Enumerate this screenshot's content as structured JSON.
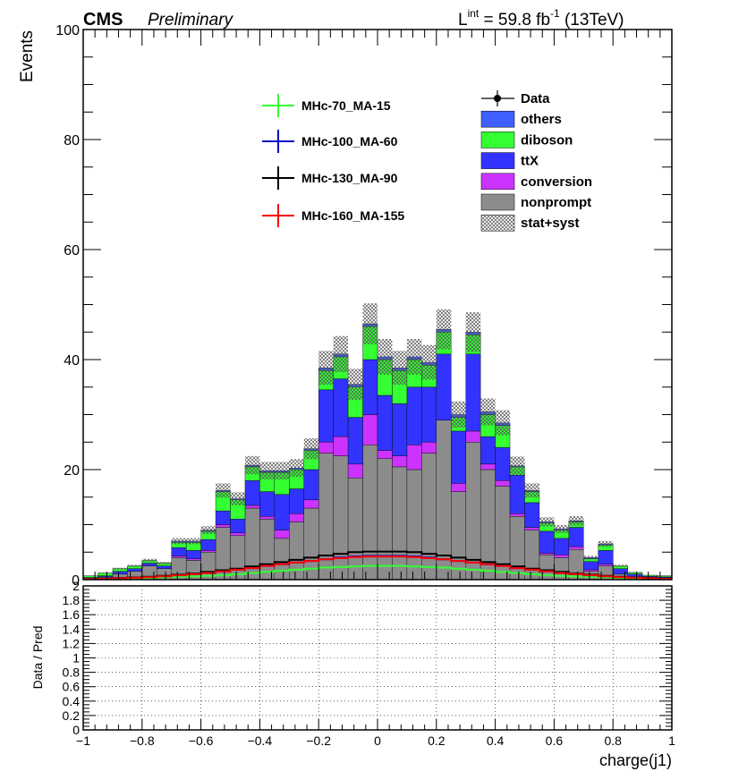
{
  "header": {
    "experiment": "CMS",
    "status": "Preliminary",
    "lumi_prefix": "L",
    "lumi_sup": "int",
    "lumi_value": " = 59.8 fb",
    "lumi_unit_sup": "-1",
    "lumi_energy": " (13TeV)"
  },
  "colors": {
    "others": "#3f5fff",
    "diboson": "#33ff33",
    "ttX": "#3333ff",
    "conversion": "#cc33ff",
    "nonprompt": "#8c8c8c",
    "sig1": "#33ff33",
    "sig2": "#0000cc",
    "sig3": "#000000",
    "sig4": "#ff0000"
  },
  "legend": {
    "signals": [
      "MHc-70_MA-15",
      "MHc-100_MA-60",
      "MHc-130_MA-90",
      "MHc-160_MA-155"
    ],
    "backgrounds": [
      "Data",
      "others",
      "diboson",
      "ttX",
      "conversion",
      "nonprompt",
      "stat+syst"
    ]
  },
  "chart_data": [
    {
      "type": "bar",
      "stacked": true,
      "ylabel": "Events",
      "xlim": [
        -1,
        1
      ],
      "ylim": [
        0,
        100
      ],
      "y_ticks": [
        "0",
        "20",
        "40",
        "60",
        "80",
        "100"
      ],
      "bin_edges": [
        -1.0,
        -0.95,
        -0.9,
        -0.85,
        -0.8,
        -0.75,
        -0.7,
        -0.65,
        -0.6,
        -0.55,
        -0.5,
        -0.45,
        -0.4,
        -0.35,
        -0.3,
        -0.25,
        -0.2,
        -0.15,
        -0.1,
        -0.05,
        0.0,
        0.05,
        0.1,
        0.15,
        0.2,
        0.25,
        0.3,
        0.35,
        0.4,
        0.45,
        0.5,
        0.55,
        0.6,
        0.65,
        0.7,
        0.75,
        0.8,
        0.85,
        0.9,
        0.95,
        1.0
      ],
      "series": [
        {
          "name": "nonprompt",
          "values": [
            0.2,
            0.5,
            1.0,
            1.5,
            2.5,
            2.0,
            4.0,
            3.5,
            5.0,
            9.5,
            8.0,
            13.0,
            11.0,
            7.5,
            10.5,
            13.0,
            23.0,
            22.5,
            18.5,
            24.5,
            22.0,
            20.5,
            20.0,
            23.0,
            29.0,
            16.0,
            25.0,
            20.0,
            17.0,
            11.5,
            9.0,
            4.5,
            4.0,
            5.5,
            1.5,
            2.5,
            1.0,
            0.5,
            0.3,
            0.2
          ]
        },
        {
          "name": "conversion",
          "values": [
            0.0,
            0.0,
            0.0,
            0.0,
            0.0,
            0.0,
            0.3,
            0.3,
            0.3,
            0.5,
            0.5,
            0.5,
            0.5,
            1.5,
            1.5,
            1.5,
            2.0,
            3.5,
            2.5,
            5.5,
            1.5,
            2.0,
            4.5,
            2.0,
            0.0,
            1.5,
            2.0,
            1.0,
            1.0,
            0.5,
            0.5,
            0.3,
            0.5,
            0.5,
            0.3,
            0.3,
            0.0,
            0.0,
            0.0,
            0.0
          ]
        },
        {
          "name": "ttX",
          "values": [
            0.2,
            0.2,
            0.5,
            0.5,
            0.5,
            0.5,
            1.5,
            1.5,
            2.0,
            2.5,
            2.5,
            4.5,
            4.5,
            6.5,
            4.5,
            5.5,
            9.5,
            10.5,
            8.5,
            10.0,
            10.0,
            9.5,
            10.5,
            10.0,
            12.0,
            9.5,
            14.0,
            5.0,
            6.0,
            7.0,
            4.5,
            4.0,
            3.0,
            3.5,
            1.5,
            2.5,
            1.0,
            0.5,
            0.3,
            0.3
          ]
        },
        {
          "name": "diboson",
          "values": [
            0.3,
            0.5,
            0.5,
            0.5,
            0.5,
            0.5,
            1.0,
            1.5,
            1.5,
            3.5,
            3.5,
            2.5,
            3.5,
            4.0,
            3.5,
            3.5,
            3.5,
            4.0,
            5.5,
            6.0,
            6.5,
            6.0,
            5.0,
            4.0,
            4.0,
            2.5,
            3.5,
            4.0,
            4.0,
            1.5,
            2.0,
            1.5,
            1.5,
            1.0,
            0.5,
            1.0,
            0.5,
            0.3,
            0.2,
            0.2
          ]
        },
        {
          "name": "others",
          "values": [
            0.0,
            0.0,
            0.0,
            0.0,
            0.0,
            0.0,
            0.2,
            0.2,
            0.2,
            0.2,
            0.2,
            0.3,
            0.3,
            0.3,
            0.3,
            0.3,
            0.5,
            0.5,
            0.5,
            0.5,
            0.5,
            0.5,
            0.5,
            0.5,
            0.5,
            0.5,
            0.5,
            0.5,
            0.5,
            0.2,
            0.2,
            0.2,
            0.2,
            0.2,
            0.2,
            0.2,
            0.0,
            0.0,
            0.0,
            0.0
          ]
        }
      ],
      "signals": [
        {
          "name": "MHc-70_MA-15",
          "values": [
            0.05,
            0.1,
            0.15,
            0.2,
            0.3,
            0.4,
            0.5,
            0.6,
            0.7,
            0.8,
            1.0,
            1.2,
            1.4,
            1.6,
            1.8,
            2.0,
            2.2,
            2.3,
            2.4,
            2.5,
            2.5,
            2.5,
            2.4,
            2.3,
            2.2,
            2.0,
            1.8,
            1.6,
            1.4,
            1.2,
            1.0,
            0.8,
            0.7,
            0.6,
            0.5,
            0.4,
            0.3,
            0.2,
            0.15,
            0.1
          ]
        },
        {
          "name": "MHc-100_MA-60",
          "values": [
            0.1,
            0.2,
            0.3,
            0.4,
            0.5,
            0.6,
            0.8,
            1.0,
            1.2,
            1.5,
            1.8,
            2.1,
            2.5,
            2.8,
            3.1,
            3.4,
            3.7,
            4.0,
            4.2,
            4.3,
            4.3,
            4.3,
            4.2,
            4.0,
            3.7,
            3.4,
            3.1,
            2.8,
            2.5,
            2.1,
            1.8,
            1.5,
            1.2,
            1.0,
            0.8,
            0.6,
            0.5,
            0.4,
            0.3,
            0.2
          ]
        },
        {
          "name": "MHc-130_MA-90",
          "values": [
            0.1,
            0.2,
            0.3,
            0.4,
            0.5,
            0.7,
            0.9,
            1.1,
            1.4,
            1.7,
            2.0,
            2.4,
            2.8,
            3.2,
            3.6,
            4.0,
            4.4,
            4.7,
            5.0,
            5.1,
            5.1,
            5.1,
            5.0,
            4.7,
            4.4,
            4.0,
            3.6,
            3.2,
            2.8,
            2.4,
            2.0,
            1.7,
            1.4,
            1.1,
            0.9,
            0.7,
            0.5,
            0.4,
            0.3,
            0.2
          ]
        },
        {
          "name": "MHc-160_MA-155",
          "values": [
            0.1,
            0.15,
            0.25,
            0.35,
            0.45,
            0.6,
            0.8,
            1.0,
            1.2,
            1.5,
            1.8,
            2.1,
            2.5,
            2.8,
            3.1,
            3.4,
            3.7,
            3.9,
            4.1,
            4.2,
            4.2,
            4.2,
            4.1,
            3.9,
            3.7,
            3.4,
            3.1,
            2.8,
            2.5,
            2.1,
            1.8,
            1.5,
            1.2,
            1.0,
            0.8,
            0.6,
            0.45,
            0.35,
            0.25,
            0.15
          ]
        }
      ],
      "uncertainty_fraction": 0.08
    },
    {
      "type": "line",
      "xlabel": "charge(j1)",
      "ylabel": "Data / Pred",
      "xlim": [
        -1,
        1
      ],
      "ylim": [
        0,
        2
      ],
      "grid": true,
      "x_ticks": [
        "−1",
        "−0.8",
        "−0.6",
        "−0.4",
        "−0.2",
        "0",
        "0.2",
        "0.4",
        "0.6",
        "0.8",
        "1"
      ],
      "y_ticks": [
        "0",
        "0.2",
        "0.4",
        "0.6",
        "0.8",
        "1",
        "1.2",
        "1.4",
        "1.6",
        "1.8",
        "2"
      ]
    }
  ]
}
